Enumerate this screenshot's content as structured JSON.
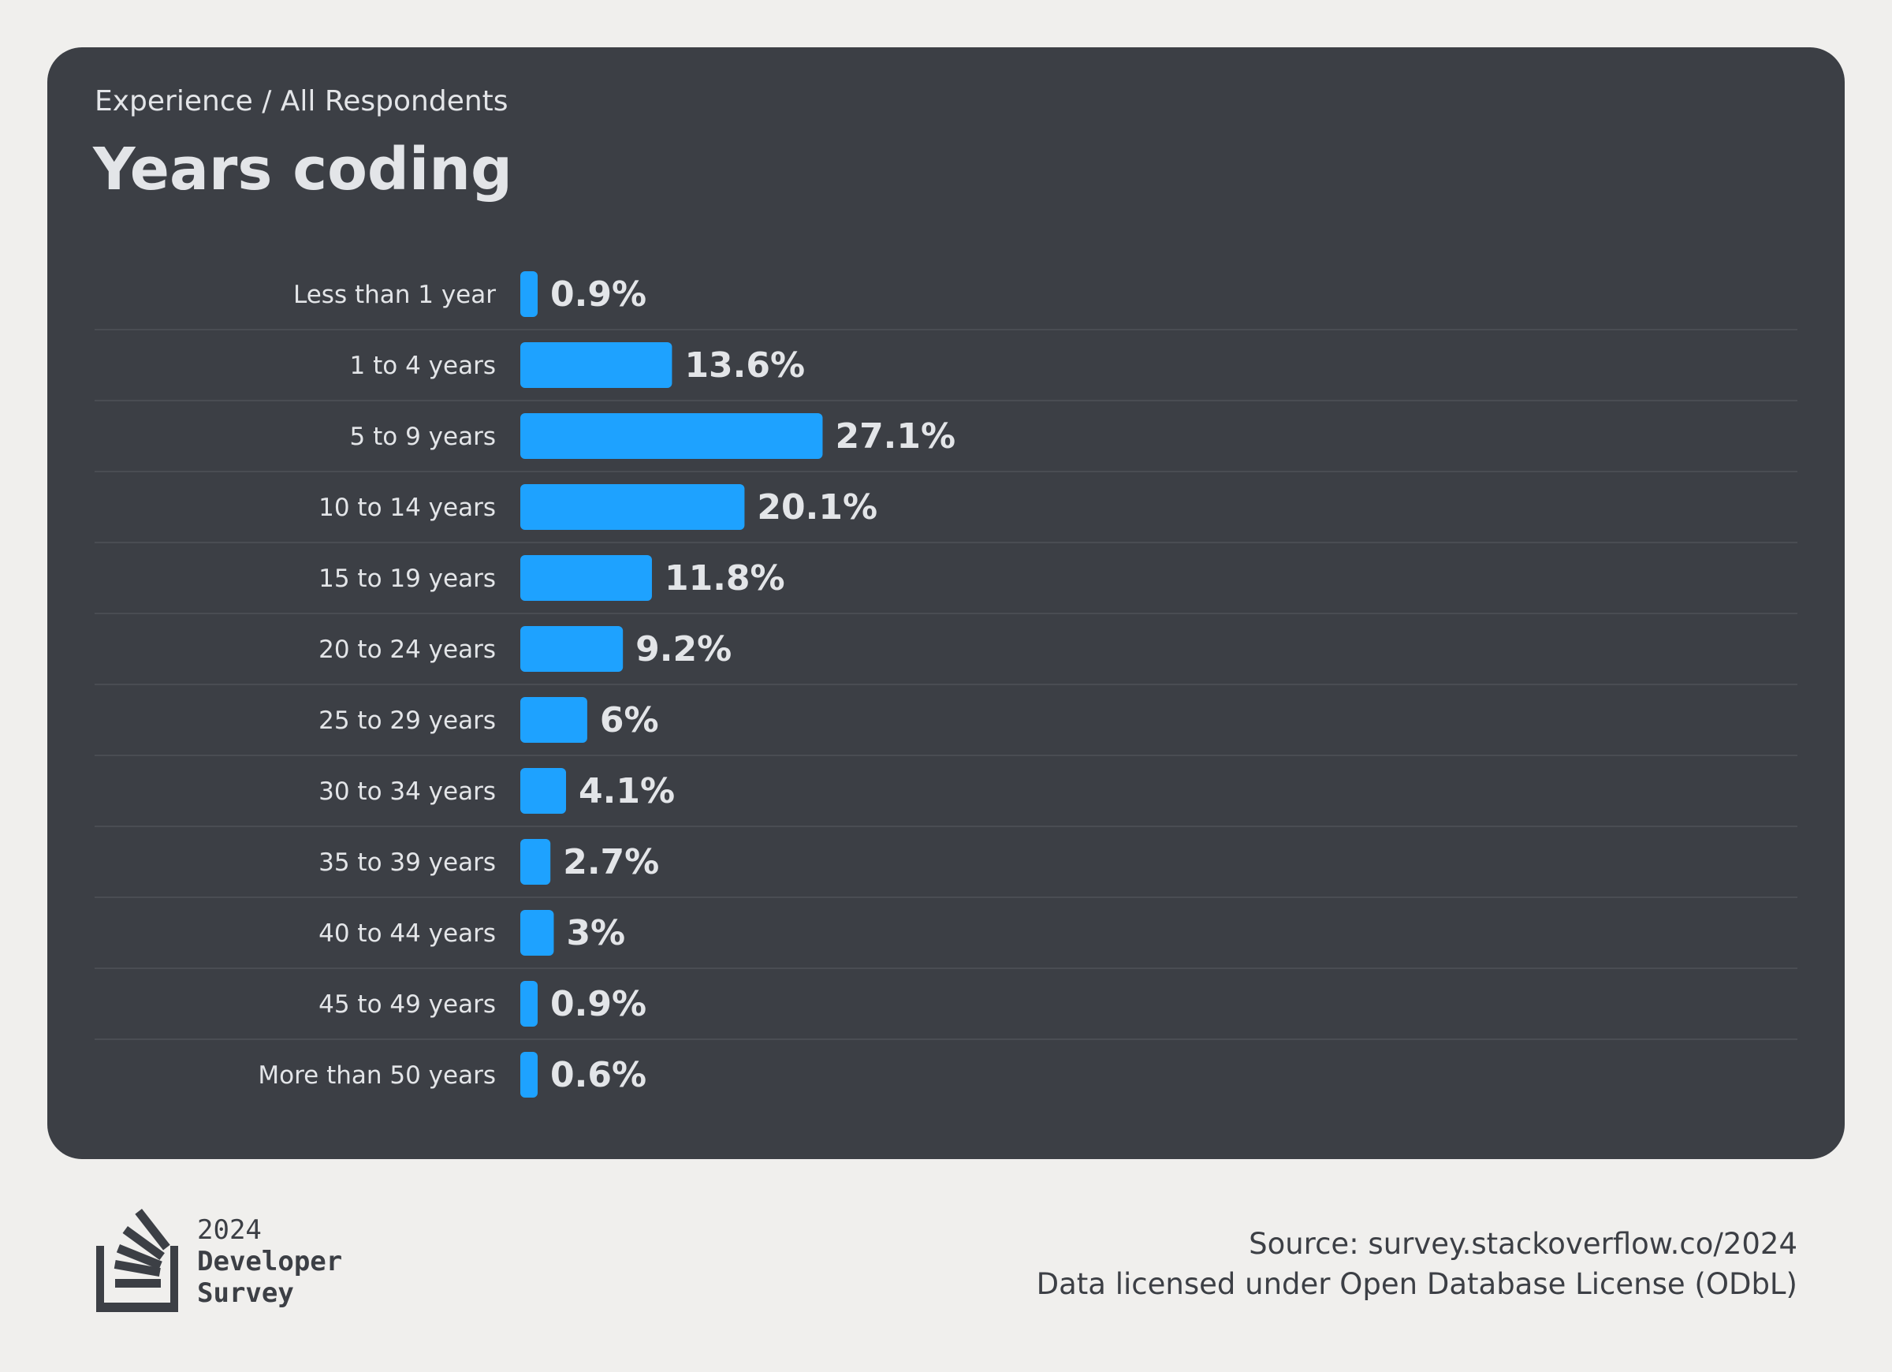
{
  "header": {
    "breadcrumb": "Experience / All Respondents",
    "title": "Years coding"
  },
  "chart_data": {
    "type": "bar",
    "orientation": "horizontal",
    "title": "Years coding",
    "categories": [
      "Less than 1 year",
      "1 to 4 years",
      "5 to 9 years",
      "10 to 14 years",
      "15 to 19 years",
      "20 to 24 years",
      "25 to 29 years",
      "30 to 34 years",
      "35 to 39 years",
      "40 to 44 years",
      "45 to 49 years",
      "More than 50 years"
    ],
    "values": [
      0.9,
      13.6,
      27.1,
      20.1,
      11.8,
      9.2,
      6,
      4.1,
      2.7,
      3,
      0.9,
      0.6
    ],
    "value_labels": [
      "0.9%",
      "13.6%",
      "27.1%",
      "20.1%",
      "11.8%",
      "9.2%",
      "6%",
      "4.1%",
      "2.7%",
      "3%",
      "0.9%",
      "0.6%"
    ],
    "unit": "%",
    "bar_color": "#1ea2ff",
    "background_color": "#3c3f45",
    "grid": false,
    "row_separators": true
  },
  "footer": {
    "logo": {
      "year": "2024",
      "line1": "Developer",
      "line2": "Survey"
    },
    "source": "Source: survey.stackoverflow.co/2024",
    "license": "Data licensed under Open Database License (ODbL)"
  }
}
